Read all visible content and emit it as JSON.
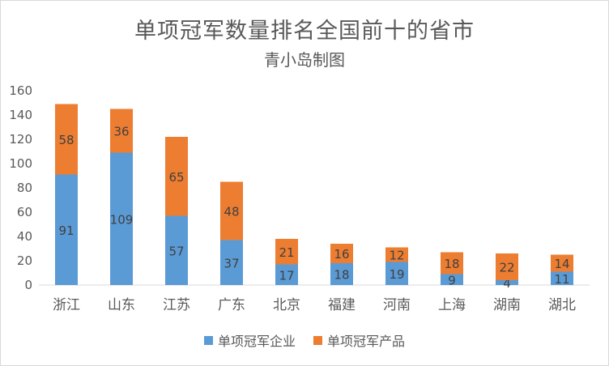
{
  "chart_data": {
    "type": "bar",
    "stacked": true,
    "title": "单项冠军数量排名全国前十的省市",
    "subtitle": "青小岛制图",
    "categories": [
      "浙江",
      "山东",
      "江苏",
      "广东",
      "北京",
      "福建",
      "河南",
      "上海",
      "湖南",
      "湖北"
    ],
    "series": [
      {
        "name": "单项冠军企业",
        "color": "#5B9BD5",
        "values": [
          91,
          109,
          57,
          37,
          17,
          18,
          19,
          9,
          4,
          11
        ]
      },
      {
        "name": "单项冠军产品",
        "color": "#ED7D31",
        "values": [
          58,
          36,
          65,
          48,
          21,
          16,
          12,
          18,
          22,
          14
        ]
      }
    ],
    "ylim": [
      0,
      160
    ],
    "yticks": [
      0,
      20,
      40,
      60,
      80,
      100,
      120,
      140,
      160
    ],
    "grid": false,
    "legend_position": "bottom"
  }
}
